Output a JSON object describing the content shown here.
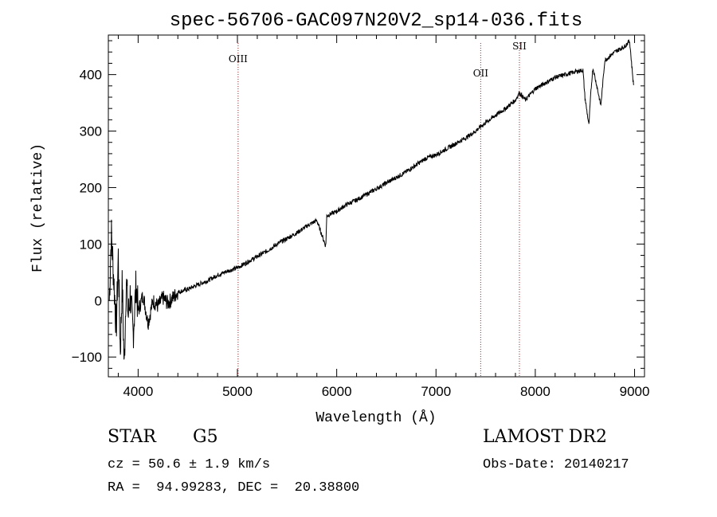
{
  "chart_data": {
    "type": "line",
    "title": "spec-56706-GAC097N20V2_sp14-036.fits",
    "xlabel": "Wavelength (Å)",
    "ylabel": "Flux (relative)",
    "xlim": [
      3700,
      9100
    ],
    "ylim": [
      -135,
      470
    ],
    "xticks": [
      4000,
      5000,
      6000,
      7000,
      8000,
      9000
    ],
    "yticks": [
      -100,
      0,
      100,
      200,
      300,
      400
    ],
    "grid": false,
    "legend": "none",
    "line_color": "#000000",
    "marker_color": "#b22222",
    "lines": [
      {
        "label": "OIII",
        "x": 5007
      },
      {
        "label": "OII",
        "x": 7450
      },
      {
        "label": "SII",
        "x": 7840
      }
    ],
    "series": [
      {
        "x": [
          3710,
          3730,
          3760,
          3780,
          3800,
          3820,
          3840,
          3860,
          3880,
          3900,
          3920,
          3950,
          3980,
          4000,
          4050,
          4100,
          4150,
          4200,
          4250,
          4300,
          4350,
          4400,
          4500,
          4600,
          4700,
          4800,
          4900,
          5000,
          5100,
          5200,
          5300,
          5400,
          5500,
          5600,
          5700,
          5800,
          5890,
          5900,
          6000,
          6100,
          6200,
          6300,
          6400,
          6500,
          6600,
          6700,
          6800,
          6900,
          7000,
          7100,
          7200,
          7300,
          7400,
          7450,
          7500,
          7600,
          7700,
          7800,
          7840,
          7900,
          8000,
          8100,
          8200,
          8300,
          8400,
          8480,
          8500,
          8540,
          8560,
          8580,
          8620,
          8660,
          8700,
          8800,
          8900,
          8950,
          8990
        ],
        "y": [
          0,
          120,
          20,
          -50,
          80,
          -90,
          30,
          -120,
          40,
          -30,
          10,
          -60,
          30,
          -20,
          10,
          -40,
          0,
          -10,
          5,
          -5,
          5,
          15,
          20,
          28,
          35,
          45,
          52,
          58,
          68,
          78,
          88,
          100,
          110,
          120,
          132,
          142,
          96,
          150,
          158,
          170,
          178,
          188,
          198,
          208,
          218,
          228,
          240,
          252,
          258,
          268,
          278,
          288,
          300,
          308,
          315,
          328,
          340,
          355,
          368,
          355,
          375,
          385,
          395,
          400,
          405,
          408,
          360,
          310,
          370,
          412,
          380,
          345,
          425,
          440,
          450,
          460,
          380
        ]
      }
    ]
  },
  "info": {
    "class_label": "STAR",
    "subclass_label": "G5",
    "survey_label": "LAMOST DR2",
    "redshift_line": "cz = 50.6 ± 1.9 km/s",
    "obs_date_line": "Obs-Date: 20140217",
    "coords_line": "RA =  94.99283, DEC =  20.38800"
  }
}
